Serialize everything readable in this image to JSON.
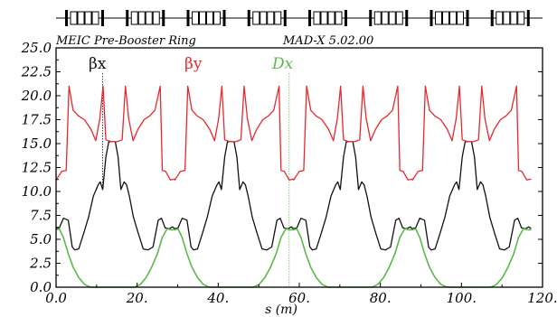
{
  "header": {
    "ring_name": "MEIC Pre-Booster Ring",
    "code": "MAD-X 5.02.00"
  },
  "colors": {
    "beta_x": "#111111",
    "beta_y": "#e8282e",
    "d_x": "#5cb84a"
  },
  "chart_data": {
    "type": "line",
    "title": "",
    "xlabel": "s (m)",
    "ylabel": "",
    "xlim": [
      0,
      120
    ],
    "ylim": [
      0,
      25
    ],
    "x_tick_labels": [
      "0.0",
      "20.",
      "40.",
      "60.",
      "80.",
      "100.",
      "120."
    ],
    "y_tick_labels": [
      "0.0",
      "2.5",
      "5.0",
      "7.5",
      "10.0",
      "12.5",
      "15.0",
      "17.5",
      "20.0",
      "22.5",
      "25.0"
    ],
    "legend_position": "top",
    "series": [
      {
        "name": "βx",
        "color": "#111111",
        "x": [
          0,
          0.8,
          1.8,
          3.0,
          4.0,
          4.6,
          5.6,
          6.8,
          8.0,
          9.2,
          10.4,
          10.9,
          11.5,
          12.3,
          13.0,
          13.8,
          14.6,
          15.3,
          16.0,
          16.8,
          17.4,
          18.1,
          19.1,
          20.3,
          21.5,
          22.7,
          23.9,
          25.2,
          26.0,
          26.9,
          27.9,
          28.7,
          29.3
        ],
        "y": [
          6.1,
          6.2,
          7.2,
          7.0,
          4.2,
          3.9,
          4.0,
          5.6,
          7.3,
          9.5,
          10.7,
          11.0,
          10.2,
          13.6,
          15.2,
          15.2,
          15.2,
          13.6,
          10.2,
          11.0,
          10.7,
          9.5,
          7.3,
          5.6,
          4.0,
          3.9,
          4.2,
          7.0,
          7.2,
          6.2,
          6.1,
          6.3,
          6.1
        ]
      },
      {
        "name": "βy",
        "color": "#e8282e",
        "x": [
          0,
          1.4,
          2.5,
          3.2,
          4.2,
          5.5,
          7.0,
          8.6,
          9.8,
          10.8,
          11.6,
          12.3,
          13.6,
          15.0,
          16.3,
          17.1,
          17.9,
          19.0,
          20.2,
          21.7,
          23.1,
          24.4,
          25.7,
          26.2,
          27.0,
          28.2,
          29.3
        ],
        "y": [
          11.2,
          12.1,
          12.2,
          21.0,
          18.5,
          17.9,
          17.5,
          16.5,
          15.3,
          17.6,
          21.0,
          15.4,
          15.2,
          15.2,
          15.4,
          21.0,
          17.6,
          15.3,
          16.5,
          17.5,
          17.9,
          18.5,
          21.0,
          12.2,
          12.1,
          11.2,
          11.3
        ]
      },
      {
        "name": "Dx",
        "color": "#5cb84a",
        "x": [
          0,
          0.8,
          1.8,
          3.0,
          4.2,
          5.6,
          7.0,
          8.4,
          9.8,
          10.9,
          11.8,
          12.5,
          13.3,
          14.6,
          15.9,
          16.7,
          17.4,
          18.3,
          19.4,
          20.8,
          22.2,
          23.6,
          25.0,
          26.2,
          27.4,
          28.4,
          29.3
        ],
        "y": [
          6.0,
          6.1,
          5.2,
          3.5,
          2.1,
          1.0,
          0.3,
          0.02,
          0.0,
          0.0,
          0.0,
          0.0,
          0.0,
          0.0,
          0.0,
          0.0,
          0.0,
          0.0,
          0.02,
          0.3,
          1.0,
          2.1,
          3.5,
          5.2,
          6.1,
          6.0,
          6.0
        ]
      }
    ],
    "period_m": 29.3,
    "periods": 4
  }
}
